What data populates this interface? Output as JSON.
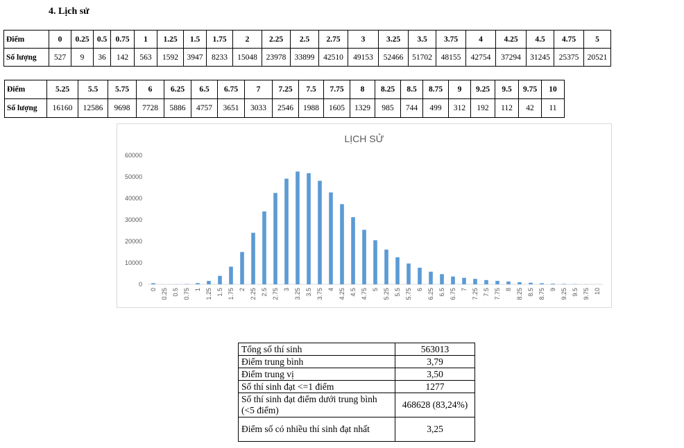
{
  "heading": "4.  Lịch sử",
  "table1": {
    "row_label_score": "Điểm",
    "row_label_count": "Số lượng",
    "scores": [
      "0",
      "0.25",
      "0.5",
      "0.75",
      "1",
      "1.25",
      "1.5",
      "1.75",
      "2",
      "2.25",
      "2.5",
      "2.75",
      "3",
      "3.25",
      "3.5",
      "3.75",
      "4",
      "4.25",
      "4.5",
      "4.75",
      "5"
    ],
    "counts": [
      "527",
      "9",
      "36",
      "142",
      "563",
      "1592",
      "3947",
      "8233",
      "15048",
      "23978",
      "33899",
      "42510",
      "49153",
      "52466",
      "51702",
      "48155",
      "42754",
      "37294",
      "31245",
      "25375",
      "20521"
    ]
  },
  "table2": {
    "row_label_score": "Điểm",
    "row_label_count": "Số lượng",
    "scores": [
      "5.25",
      "5.5",
      "5.75",
      "6",
      "6.25",
      "6.5",
      "6.75",
      "7",
      "7.25",
      "7.5",
      "7.75",
      "8",
      "8.25",
      "8.5",
      "8.75",
      "9",
      "9.25",
      "9.5",
      "9.75",
      "10"
    ],
    "counts": [
      "16160",
      "12586",
      "9698",
      "7728",
      "5886",
      "4757",
      "3651",
      "3033",
      "2546",
      "1988",
      "1605",
      "1329",
      "985",
      "744",
      "499",
      "312",
      "192",
      "112",
      "42",
      "11"
    ]
  },
  "chart_data": {
    "type": "bar",
    "title": "LỊCH SỬ",
    "xlabel": "",
    "ylabel": "",
    "ylim": [
      0,
      60000
    ],
    "yticks": [
      0,
      10000,
      20000,
      30000,
      40000,
      50000,
      60000
    ],
    "grid": false,
    "legend": "none",
    "bar_color": "#5b9bd5",
    "categories": [
      "0",
      "0.25",
      "0.5",
      "0.75",
      "1",
      "1.25",
      "1.5",
      "1.75",
      "2",
      "2.25",
      "2.5",
      "2.75",
      "3",
      "3.25",
      "3.5",
      "3.75",
      "4",
      "4.25",
      "4.5",
      "4.75",
      "5",
      "5.25",
      "5.5",
      "5.75",
      "6",
      "6.25",
      "6.5",
      "6.75",
      "7",
      "7.25",
      "7.5",
      "7.75",
      "8",
      "8.25",
      "8.5",
      "8.75",
      "9",
      "9.25",
      "9.5",
      "9.75",
      "10"
    ],
    "values": [
      527,
      9,
      36,
      142,
      563,
      1592,
      3947,
      8233,
      15048,
      23978,
      33899,
      42510,
      49153,
      52466,
      51702,
      48155,
      42754,
      37294,
      31245,
      25375,
      20521,
      16160,
      12586,
      9698,
      7728,
      5886,
      4757,
      3651,
      3033,
      2546,
      1988,
      1605,
      1329,
      985,
      744,
      499,
      312,
      192,
      112,
      42,
      11
    ]
  },
  "stats": [
    {
      "label": "Tổng số thí sinh",
      "value": "563013"
    },
    {
      "label": "Điểm trung bình",
      "value": "3,79"
    },
    {
      "label": "Điểm trung vị",
      "value": "3,50"
    },
    {
      "label": "Số thí sinh đạt <=1 điểm",
      "value": "1277"
    },
    {
      "label": "Số thí sinh đạt điểm dưới trung bình (<5 điểm)",
      "value": "468628 (83,24%)"
    },
    {
      "label": "Điểm số có nhiều thí sinh đạt nhất",
      "value": "3,25"
    }
  ]
}
